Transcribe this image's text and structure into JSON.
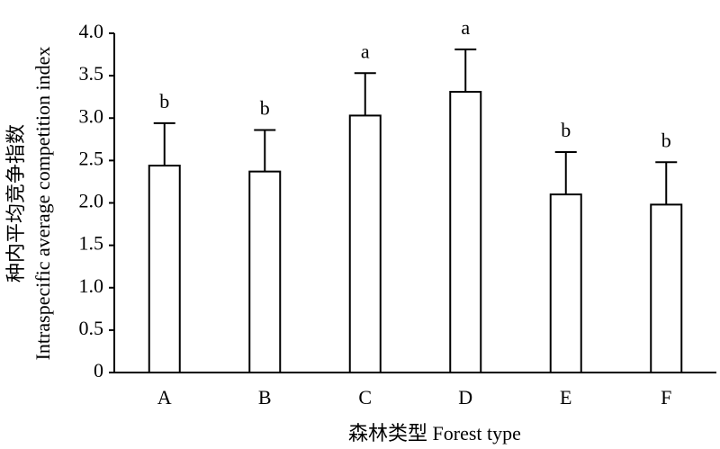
{
  "chart_data": {
    "type": "bar",
    "categories": [
      "A",
      "B",
      "C",
      "D",
      "E",
      "F"
    ],
    "values": [
      2.44,
      2.37,
      3.03,
      3.31,
      2.1,
      1.98
    ],
    "errors": [
      0.5,
      0.49,
      0.5,
      0.5,
      0.5,
      0.5
    ],
    "annotations": [
      "b",
      "b",
      "a",
      "a",
      "b",
      "b"
    ],
    "color": "#ffffff",
    "ylim": [
      0,
      4
    ],
    "yticks": [
      0,
      0.5,
      {
        "value": 1,
        "label": "1.0"
      },
      1.5,
      {
        "value": 2,
        "label": "2.0"
      },
      2.5,
      {
        "value": 3,
        "label": "3.0"
      },
      3.5,
      {
        "value": 4,
        "label": "4.0"
      }
    ],
    "ylabel": [
      "种内平均竞争指数",
      "Intraspecific average competition index"
    ],
    "xlabel": "森林类型 Forest type",
    "grid": false
  }
}
